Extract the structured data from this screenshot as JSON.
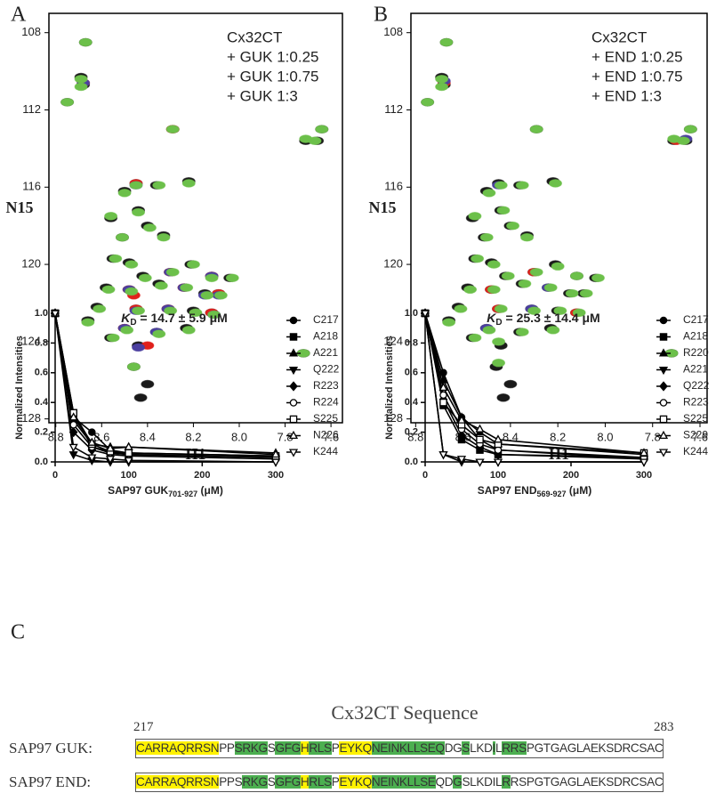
{
  "panel_labels": [
    "A",
    "B",
    "C"
  ],
  "chart_data": [
    {
      "type": "scatter",
      "xlabel": "H1",
      "ylabel": "N15",
      "xlim": [
        8.83,
        7.55
      ],
      "ylim": [
        128.2,
        107
      ],
      "xticks": [
        8.8,
        8.6,
        8.4,
        8.2,
        {
          "value": 8,
          "label": "8.0"
        },
        7.8,
        7.6
      ],
      "yticks": [
        108,
        112,
        116,
        120,
        124,
        128
      ],
      "legend": "top-right",
      "series": [
        {
          "name": "Cx32CT",
          "color": "#1a1a1a",
          "x": [
            8.67,
            8.69,
            8.68,
            8.75,
            8.29,
            7.64,
            7.66,
            7.71,
            8.45,
            8.36,
            8.22,
            8.5,
            8.44,
            8.56,
            8.4,
            8.51,
            8.33,
            8.55,
            8.48,
            8.42,
            8.3,
            8.21,
            8.12,
            8.04,
            8.58,
            8.48,
            8.35,
            8.24,
            8.15,
            8.09,
            8.62,
            8.45,
            8.31,
            8.2,
            8.12,
            8.66,
            8.5,
            8.36,
            8.23,
            8.44,
            8.46,
            8.4,
            8.43,
            7.72,
            8.56
          ],
          "y": [
            108.5,
            110.3,
            110.7,
            111.6,
            113.0,
            113.0,
            113.6,
            113.6,
            115.8,
            115.9,
            115.7,
            116.2,
            117.2,
            117.6,
            118.0,
            118.6,
            118.5,
            119.7,
            119.9,
            120.6,
            120.4,
            120.0,
            120.6,
            120.7,
            121.2,
            121.3,
            121.0,
            121.2,
            121.5,
            121.5,
            122.2,
            122.3,
            122.3,
            122.4,
            122.5,
            122.9,
            123.3,
            123.5,
            123.3,
            124.2,
            125.3,
            126.2,
            126.9,
            124.6,
            123.8
          ]
        },
        {
          "name": "+ GUK 1:0.25",
          "color": "#e0201b",
          "x": [
            8.68,
            8.29,
            8.45,
            8.3,
            8.12,
            8.48,
            8.24,
            8.09,
            8.45,
            8.31,
            8.12,
            8.5,
            8.4,
            8.46
          ],
          "y": [
            110.6,
            113.0,
            115.8,
            120.4,
            120.6,
            121.3,
            121.2,
            121.5,
            122.3,
            122.3,
            122.5,
            123.3,
            124.2,
            121.6
          ]
        },
        {
          "name": "+ GUK 1:0.75",
          "color": "#4b3fa0",
          "x": [
            8.68,
            8.45,
            8.3,
            8.12,
            8.48,
            8.24,
            8.09,
            8.45,
            8.31,
            8.11,
            8.5,
            8.36,
            8.44,
            8.15
          ],
          "y": [
            110.6,
            115.9,
            120.4,
            120.6,
            121.3,
            121.2,
            121.6,
            122.4,
            122.3,
            122.6,
            123.3,
            123.5,
            124.3,
            121.6
          ]
        },
        {
          "name": "+ GUK 1:3",
          "color": "#6cc04a",
          "x": [
            8.67,
            8.69,
            8.69,
            8.75,
            8.29,
            7.64,
            7.67,
            7.71,
            8.45,
            8.35,
            8.22,
            8.5,
            8.44,
            8.56,
            8.39,
            8.51,
            8.33,
            8.54,
            8.47,
            8.41,
            8.29,
            8.2,
            8.12,
            8.03,
            8.57,
            8.47,
            8.34,
            8.23,
            8.14,
            8.08,
            8.61,
            8.44,
            8.3,
            8.19,
            8.11,
            8.66,
            8.49,
            8.35,
            8.22,
            8.46,
            7.72,
            8.55
          ],
          "y": [
            108.5,
            110.4,
            110.8,
            111.6,
            113.0,
            113.0,
            113.6,
            113.5,
            115.9,
            115.9,
            115.8,
            116.3,
            117.3,
            117.5,
            118.1,
            118.6,
            118.6,
            119.7,
            120.0,
            120.7,
            120.4,
            120.0,
            120.7,
            120.7,
            121.3,
            121.4,
            121.1,
            121.2,
            121.6,
            121.6,
            122.3,
            122.4,
            122.4,
            122.5,
            122.6,
            123.0,
            123.4,
            123.6,
            123.4,
            125.3,
            124.6,
            123.8
          ]
        }
      ]
    },
    {
      "type": "scatter",
      "xlabel": "H1",
      "ylabel": "N15",
      "xlim": [
        8.82,
        7.57
      ],
      "ylim": [
        128.2,
        107
      ],
      "xticks": [
        8.8,
        8.6,
        8.4,
        8.2,
        {
          "value": 8,
          "label": "8.0"
        },
        7.8,
        7.6
      ],
      "yticks": [
        108,
        112,
        116,
        120,
        124,
        128
      ],
      "legend": "top-right",
      "series": [
        {
          "name": "Cx32CT",
          "color": "#1a1a1a",
          "x": [
            8.67,
            8.69,
            8.68,
            8.75,
            8.29,
            7.64,
            7.66,
            7.71,
            8.45,
            8.36,
            8.22,
            8.5,
            8.44,
            8.56,
            8.4,
            8.51,
            8.33,
            8.55,
            8.48,
            8.42,
            8.3,
            8.21,
            8.12,
            8.04,
            8.58,
            8.48,
            8.35,
            8.24,
            8.15,
            8.09,
            8.62,
            8.45,
            8.31,
            8.2,
            8.12,
            8.66,
            8.5,
            8.36,
            8.23,
            8.44,
            8.46,
            8.4,
            8.43,
            7.72,
            8.56
          ],
          "y": [
            108.5,
            110.3,
            110.7,
            111.6,
            113.0,
            113.0,
            113.6,
            113.6,
            115.8,
            115.9,
            115.7,
            116.2,
            117.2,
            117.6,
            118.0,
            118.6,
            118.5,
            119.7,
            119.9,
            120.6,
            120.4,
            120.0,
            120.6,
            120.7,
            121.2,
            121.3,
            121.0,
            121.2,
            121.5,
            121.5,
            122.2,
            122.3,
            122.3,
            122.4,
            122.5,
            122.9,
            123.3,
            123.5,
            123.3,
            124.2,
            125.3,
            126.2,
            126.9,
            124.6,
            123.8
          ]
        },
        {
          "name": "+ END 1:0.25",
          "color": "#e0201b",
          "x": [
            8.68,
            8.3,
            8.48,
            8.12,
            8.45,
            7.7
          ],
          "y": [
            110.6,
            120.4,
            121.3,
            122.5,
            122.3,
            113.6
          ]
        },
        {
          "name": "+ END 1:0.75",
          "color": "#4b3fa0",
          "x": [
            8.68,
            8.45,
            8.31,
            8.24,
            8.5,
            7.66
          ],
          "y": [
            110.5,
            115.9,
            122.3,
            121.2,
            123.3,
            113.5
          ]
        },
        {
          "name": "+ END 1:3",
          "color": "#6cc04a",
          "x": [
            8.67,
            8.69,
            8.69,
            8.75,
            8.29,
            7.64,
            7.67,
            7.71,
            8.44,
            8.35,
            8.21,
            8.49,
            8.43,
            8.55,
            8.39,
            8.5,
            8.33,
            8.54,
            8.47,
            8.41,
            8.29,
            8.2,
            8.12,
            8.03,
            8.57,
            8.47,
            8.34,
            8.23,
            8.14,
            8.08,
            8.61,
            8.44,
            8.3,
            8.19,
            8.11,
            8.66,
            8.49,
            8.35,
            8.22,
            8.45,
            7.72,
            8.55,
            8.45
          ],
          "y": [
            108.5,
            110.4,
            110.8,
            111.6,
            113.0,
            113.0,
            113.6,
            113.5,
            115.9,
            115.9,
            115.8,
            116.3,
            117.2,
            117.5,
            118.0,
            118.6,
            118.6,
            119.7,
            120.0,
            120.6,
            120.4,
            120.1,
            120.6,
            120.7,
            121.3,
            121.3,
            121.0,
            121.2,
            121.5,
            121.5,
            122.3,
            122.3,
            122.4,
            122.4,
            122.5,
            123.0,
            123.4,
            123.5,
            123.4,
            125.1,
            124.6,
            123.8,
            124.0
          ]
        }
      ]
    },
    {
      "type": "line",
      "annotation": [
        "K",
        "D",
        " = 14.7 ± 5.9 μM"
      ],
      "xlabel": [
        "SAP97 GUK",
        "701-927",
        " (μM)"
      ],
      "ylabel": "Normalized Intensities",
      "x": [
        0,
        25,
        50,
        75,
        100,
        300
      ],
      "xlim": [
        0,
        300
      ],
      "ylim": [
        0,
        1
      ],
      "xticks": [
        0,
        100,
        200,
        300
      ],
      "yticks": [
        {
          "value": 0,
          "label": "0.0"
        },
        0.2,
        0.4,
        0.6,
        0.8,
        {
          "value": 1,
          "label": "1.0"
        }
      ],
      "color": "#000000",
      "legend": "right",
      "series": [
        {
          "name": "C217",
          "marker": "circle",
          "values": [
            1,
            0.3,
            0.2,
            0.08,
            0.06,
            0.04
          ]
        },
        {
          "name": "A218",
          "marker": "square",
          "values": [
            1,
            0.33,
            0.1,
            0.07,
            0.05,
            0.03
          ]
        },
        {
          "name": "A221",
          "marker": "triangle",
          "values": [
            1,
            0.28,
            0.12,
            0.1,
            0.1,
            0.06
          ]
        },
        {
          "name": "Q222",
          "marker": "triangle-down",
          "values": [
            1,
            0.05,
            0.01,
            0,
            0,
            0
          ]
        },
        {
          "name": "R223",
          "marker": "diamond",
          "values": [
            1,
            0.2,
            0.08,
            0.05,
            0.04,
            0.02
          ]
        },
        {
          "name": "R224",
          "marker": "circle-open",
          "values": [
            1,
            0.25,
            0.1,
            0.06,
            0.05,
            0.03
          ]
        },
        {
          "name": "S225",
          "marker": "square-open",
          "values": [
            1,
            0.33,
            0.12,
            0.07,
            0.06,
            0.04
          ]
        },
        {
          "name": "N226",
          "marker": "triangle-open",
          "values": [
            1,
            0.3,
            0.13,
            0.09,
            0.1,
            0.05
          ]
        },
        {
          "name": "K244",
          "marker": "triangle-down-open",
          "values": [
            1,
            0.1,
            0.03,
            0.02,
            0.01,
            0
          ]
        }
      ]
    },
    {
      "type": "line",
      "annotation": [
        "K",
        "D",
        " = 25.3 ± 14.4 μM"
      ],
      "xlabel": [
        "SAP97 END",
        "569-927",
        " (μM)"
      ],
      "ylabel": "Normalized Intensities",
      "x": [
        0,
        25,
        50,
        75,
        100,
        300
      ],
      "xlim": [
        0,
        300
      ],
      "ylim": [
        0,
        1
      ],
      "xticks": [
        0,
        100,
        200,
        300
      ],
      "yticks": [
        {
          "value": 0,
          "label": "0.0"
        },
        0.2,
        0.4,
        0.6,
        0.8,
        {
          "value": 1,
          "label": "1.0"
        }
      ],
      "color": "#000000",
      "legend": "right",
      "series": [
        {
          "name": "C217",
          "marker": "circle",
          "values": [
            1,
            0.6,
            0.3,
            0.15,
            0.08,
            0.02
          ]
        },
        {
          "name": "A218",
          "marker": "square",
          "values": [
            1,
            0.38,
            0.15,
            0.08,
            0.05,
            0.03
          ]
        },
        {
          "name": "R220",
          "marker": "triangle",
          "values": [
            1,
            0.55,
            0.3,
            0.2,
            0.12,
            0.05
          ]
        },
        {
          "name": "A221",
          "marker": "triangle-down",
          "values": [
            1,
            0.05,
            0,
            0,
            0,
            0
          ]
        },
        {
          "name": "Q222",
          "marker": "diamond",
          "values": [
            1,
            0.42,
            0.18,
            0.1,
            0.05,
            0.02
          ]
        },
        {
          "name": "R223",
          "marker": "circle-open",
          "values": [
            1,
            0.45,
            0.22,
            0.12,
            0.08,
            0.03
          ]
        },
        {
          "name": "S225",
          "marker": "square-open",
          "values": [
            1,
            0.4,
            0.25,
            0.15,
            0.12,
            0.06
          ]
        },
        {
          "name": "S229",
          "marker": "triangle-open",
          "values": [
            1,
            0.5,
            0.28,
            0.22,
            0.15,
            0.06
          ]
        },
        {
          "name": "K244",
          "marker": "triangle-down-open",
          "values": [
            1,
            0.05,
            0.02,
            0,
            0,
            0
          ]
        }
      ]
    }
  ],
  "sequence": {
    "title": "Cx32CT Sequence",
    "start": "217",
    "end": "283",
    "rows": [
      {
        "label": "SAP97 GUK:",
        "segments": [
          {
            "text": "CARRAQRRSN",
            "color": "#fff200"
          },
          {
            "text": "PP"
          },
          {
            "text": "SRKG",
            "color": "#4caf50"
          },
          {
            "text": "S"
          },
          {
            "text": "GFG",
            "color": "#4caf50"
          },
          {
            "text": "H",
            "color": "#fff200"
          },
          {
            "text": "RLS",
            "color": "#4caf50"
          },
          {
            "text": "P"
          },
          {
            "text": "EYKQ",
            "color": "#fff200"
          },
          {
            "text": "NEINKLLSEQ",
            "color": "#4caf50"
          },
          {
            "text": "DG"
          },
          {
            "text": "S",
            "color": "#4caf50"
          },
          {
            "text": "LKD"
          },
          {
            "text": "I",
            "color": "#4caf50"
          },
          {
            "text": "L"
          },
          {
            "text": "RRS",
            "color": "#4caf50"
          },
          {
            "text": "PGTGAGLAEKSDRCSAC"
          }
        ]
      },
      {
        "label": "SAP97 END:",
        "segments": [
          {
            "text": "CARRAQRRSN",
            "color": "#fff200"
          },
          {
            "text": "PPS"
          },
          {
            "text": "RKG",
            "color": "#4caf50"
          },
          {
            "text": "S"
          },
          {
            "text": "GFG",
            "color": "#4caf50"
          },
          {
            "text": "H",
            "color": "#fff200"
          },
          {
            "text": "RLS",
            "color": "#4caf50"
          },
          {
            "text": "P"
          },
          {
            "text": "EYKQ",
            "color": "#fff200"
          },
          {
            "text": "NEINKLLSE",
            "color": "#4caf50"
          },
          {
            "text": "QD"
          },
          {
            "text": "G",
            "color": "#4caf50"
          },
          {
            "text": "SLKDIL"
          },
          {
            "text": "R",
            "color": "#4caf50"
          },
          {
            "text": "RSPGTGAGLAEKSDRCSAC"
          }
        ]
      }
    ]
  }
}
